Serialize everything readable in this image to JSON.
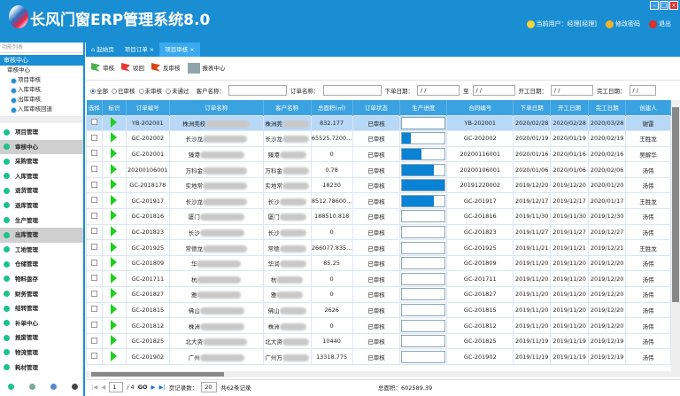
{
  "app": {
    "title": "长风门窗ERP管理系统8.0",
    "user_label": "当前用户：经理[经理]",
    "change_password": "修改密码",
    "logout": "退出"
  },
  "sidebar": {
    "caption": "功能列表",
    "group": "审核中心",
    "tree": {
      "root": "审核中心",
      "items": [
        "项目审核",
        "入库审核",
        "出库审核",
        "入库审核回退"
      ]
    },
    "modules": [
      "项目管理",
      "审核中心",
      "采购管理",
      "入库管理",
      "退货管理",
      "退库管理",
      "生产管理",
      "出库管理",
      "工地管理",
      "仓储管理",
      "物料盘存",
      "财务管理",
      "结转管理",
      "补单中心",
      "报废管理",
      "物流管理",
      "耗材管理"
    ]
  },
  "tabs": [
    {
      "label": "起始页"
    },
    {
      "label": "项目订单"
    },
    {
      "label": "项目审核",
      "active": true
    }
  ],
  "toolbar": {
    "approve": "审核",
    "reject": "驳回",
    "unapprove": "反审核",
    "report": "报表中心"
  },
  "filter": {
    "radios": [
      "全部",
      "已审核",
      "未审核",
      "未通过"
    ],
    "customer_label": "客户名称：",
    "order_label": "订单名称：",
    "order_date_label": "下单日期：",
    "to_label": "至",
    "start_date_label": "开工日期：",
    "finish_date_label": "完工日期：",
    "date_placeholder": "/  /"
  },
  "table": {
    "columns": [
      "选择",
      "标识",
      "订单编号",
      "订单名称",
      "客户名称",
      "总面积(㎡)",
      "订单状态",
      "生产进度",
      "合同编号",
      "下单日期",
      "开工日期",
      "完工日期",
      "创建人"
    ],
    "rows": [
      [
        "YB-202001",
        "株洲莞校",
        "株洲莞",
        "832.177",
        "已审核",
        0,
        "YB-202001",
        "2020/02/28",
        "2020/02/28",
        "2020/03/28",
        "谢雷"
      ],
      [
        "GC-202002",
        "长沙龙",
        "长沙龙",
        "65525.7200...",
        "已审核",
        20,
        "GC-202002",
        "2020/01/19",
        "2020/01/19",
        "2020/02/19",
        "王胜龙"
      ],
      [
        "GC-202001",
        "臻港",
        "臻港",
        "0",
        "已审核",
        45,
        "20200116001",
        "2020/01/16",
        "2020/01/16",
        "2020/02/16",
        "吴解华"
      ],
      [
        "20200106001",
        "万科金",
        "万科金",
        "0.78",
        "已审核",
        75,
        "20200106001",
        "2020/01/06",
        "2020/01/06",
        "2020/02/06",
        "汤伟"
      ],
      [
        "GC-2018178",
        "实地常",
        "实地常",
        "18230",
        "已审核",
        100,
        "20191220002",
        "2019/12/20",
        "2019/12/20",
        "2020/01/20",
        "汤伟"
      ],
      [
        "GC-201917",
        "长沙龙",
        "长沙",
        "8512.78600...",
        "已审核",
        75,
        "GC-201917",
        "2019/12/17",
        "2019/12/17",
        "2020/01/17",
        "王胜龙"
      ],
      [
        "GC-201816",
        "厦门",
        "厦门",
        "188510.818",
        "已审核",
        0,
        "GC-201816",
        "2019/11/30",
        "2019/11/30",
        "2019/12/30",
        "汤伟"
      ],
      [
        "GC-201823",
        "长沙",
        "长沙",
        "0",
        "已审核",
        0,
        "GC-201823",
        "2019/11/27",
        "2019/11/27",
        "2019/12/27",
        "汤伟"
      ],
      [
        "GC-201925",
        "常德龙",
        "常德",
        "266077.835...",
        "已审核",
        0,
        "GC-201925",
        "2019/11/21",
        "2019/11/21",
        "2019/12/21",
        "王胜龙"
      ],
      [
        "GC-201809",
        "华",
        "华润",
        "85.25",
        "已审核",
        0,
        "GC-201809",
        "2019/11/20",
        "2019/11/20",
        "2019/12/20",
        "汤伟"
      ],
      [
        "GC-201711",
        "杭",
        "杭",
        "0",
        "已审核",
        0,
        "GC-201711",
        "2019/11/20",
        "2019/11/20",
        "2019/12/20",
        "汤伟"
      ],
      [
        "GC-201827",
        "雅",
        "雅",
        "0",
        "已审核",
        0,
        "GC-201827",
        "2019/11/20",
        "2019/11/20",
        "2019/12/20",
        "汤伟"
      ],
      [
        "GC-201815",
        "佛山",
        "佛山",
        "2626",
        "已审核",
        0,
        "GC-201815",
        "2019/11/20",
        "2019/11/20",
        "2019/12/20",
        "汤伟"
      ],
      [
        "GC-201812",
        "株洲",
        "株洲",
        "0",
        "已审核",
        0,
        "GC-201812",
        "2019/11/20",
        "2019/11/20",
        "2019/12/20",
        "汤伟"
      ],
      [
        "GC-201825",
        "北大资",
        "北大资",
        "10440",
        "已审核",
        0,
        "GC-201825",
        "2019/11/19",
        "2019/11/19",
        "2019/12/19",
        "汤伟"
      ],
      [
        "GC-201902",
        "广州",
        "广州万",
        "13318.775",
        "已审核",
        0,
        "GC-201902",
        "2019/11/19",
        "2019/11/19",
        "2019/12/19",
        "汤伟"
      ]
    ]
  },
  "pager": {
    "page": "1",
    "of": "/ 4",
    "go": "GO",
    "page_size_label": "页记录数：",
    "page_size": "20",
    "total_records": "共62条记录",
    "total_area": "总面积：602589.39"
  },
  "colors": {
    "primary": "#1a8ed3",
    "progress": "#0a83d4",
    "flag": "#1ed01e"
  }
}
